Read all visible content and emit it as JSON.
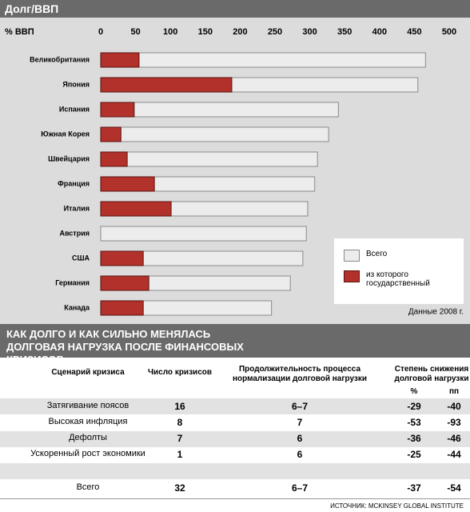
{
  "header": {
    "title": "Долг/ВВП"
  },
  "chart_data": {
    "type": "bar",
    "orientation": "horizontal",
    "axis_label": "% ВВП",
    "categories": [
      "Великобритания",
      "Япония",
      "Испания",
      "Южная Корея",
      "Швейцария",
      "Франция",
      "Италия",
      "Австрия",
      "США",
      "Германия",
      "Канада"
    ],
    "series": [
      {
        "name": "Всего",
        "color": "#ececec",
        "values": [
          466,
          455,
          341,
          327,
          311,
          307,
          297,
          295,
          290,
          272,
          245
        ]
      },
      {
        "name": "из которого государственный",
        "color": "#b3312b",
        "values": [
          55,
          188,
          48,
          29,
          38,
          77,
          101,
          null,
          61,
          69,
          61
        ]
      }
    ],
    "xlim": [
      0,
      500
    ],
    "xticks": [
      0,
      50,
      100,
      150,
      200,
      250,
      300,
      350,
      400,
      450,
      500
    ],
    "grid": false,
    "legend": "bottom-right",
    "note": "Данные 2008 г."
  },
  "table": {
    "title": "КАК ДОЛГО И КАК СИЛЬНО МЕНЯЛАСЬ ДОЛГОВАЯ НАГРУЗКА ПОСЛЕ ФИНАНСОВЫХ КРИЗИСОВ",
    "columns": [
      "Сценарий кризиса",
      "Число кризисов",
      "Продолжительность процесса нормализации долговой нагрузки",
      "Степень снижения долговой нагрузки"
    ],
    "subcolumns": [
      "%",
      "пп"
    ],
    "rows": [
      [
        "Затягивание поясов",
        "16",
        "6–7",
        "-29",
        "-40"
      ],
      [
        "Высокая инфляция",
        "8",
        "7",
        "-53",
        "-93"
      ],
      [
        "Дефолты",
        "7",
        "6",
        "-36",
        "-46"
      ],
      [
        "Ускоренный рост экономики",
        "1",
        "6",
        "-25",
        "-44"
      ]
    ],
    "total": [
      "Всего",
      "32",
      "6–7",
      "-37",
      "-54"
    ],
    "source": "ИСТОЧНИК: MCKINSEY GLOBAL INSTITUTE"
  }
}
